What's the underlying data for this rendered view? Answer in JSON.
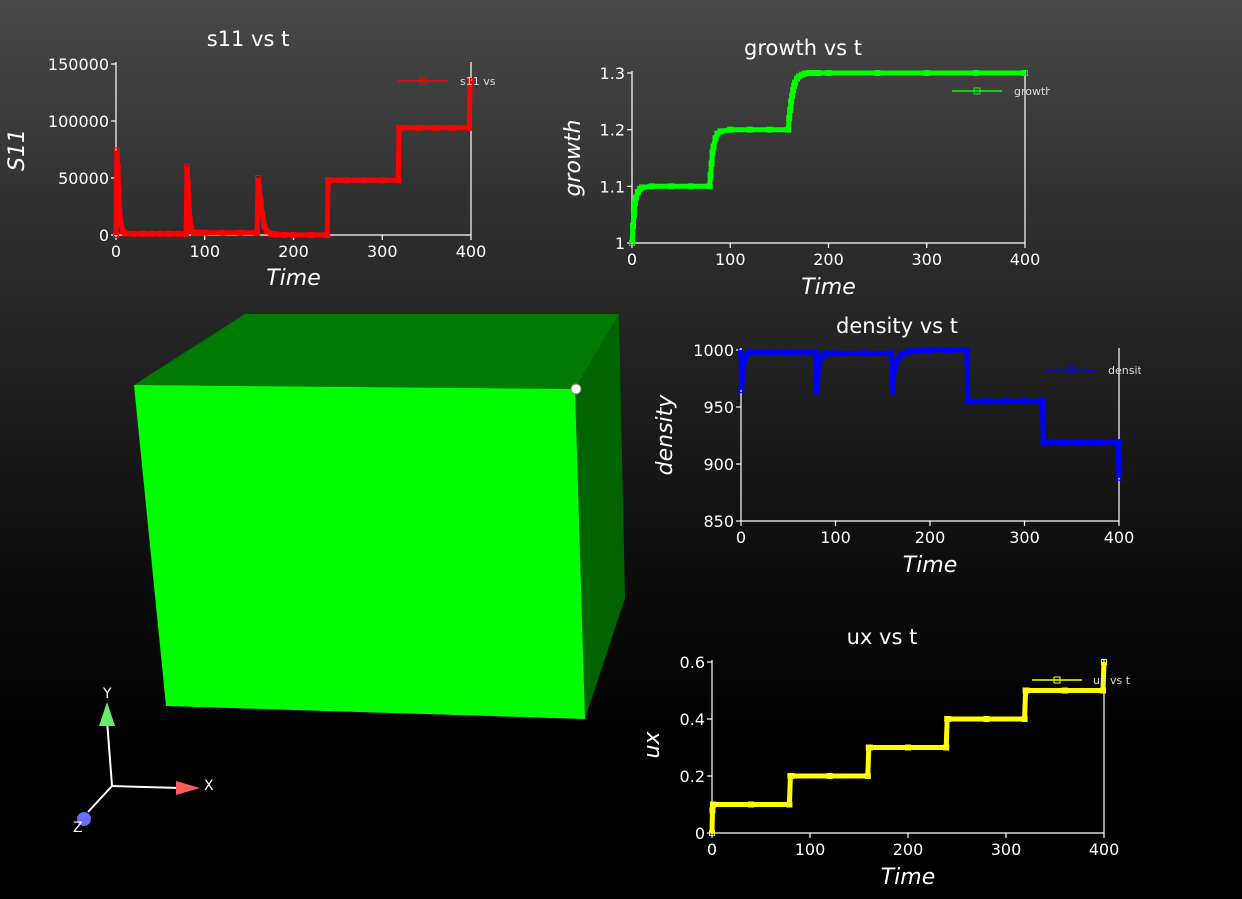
{
  "scene": {
    "box_colors": {
      "front": "#00ff00",
      "top": "#007a00",
      "side": "#006400",
      "marker": "#ffffff"
    },
    "triad": {
      "x_label": "X",
      "y_label": "Y",
      "z_label": "Z",
      "x_color": "#ff5a5a",
      "y_color": "#66ee66",
      "z_color": "#6a6aff"
    }
  },
  "chart_data": [
    {
      "id": "s11",
      "type": "line",
      "title": "s11 vs t",
      "xlabel": "Time",
      "ylabel": "S11",
      "color": "#ff0000",
      "legend": "s11 vs",
      "xlim": [
        0,
        400
      ],
      "ylim": [
        0,
        150000
      ],
      "xticks": [
        0,
        100,
        200,
        300,
        400
      ],
      "yticks": [
        0,
        50000,
        100000,
        150000
      ],
      "series": [
        {
          "name": "s11 vs",
          "x": [
            0,
            1,
            2,
            3,
            5,
            8,
            10,
            20,
            30,
            40,
            50,
            60,
            70,
            79,
            80,
            81,
            83,
            85,
            88,
            90,
            95,
            100,
            120,
            140,
            158,
            159,
            160,
            161,
            163,
            165,
            167,
            170,
            175,
            180,
            190,
            200,
            220,
            238,
            239,
            240,
            260,
            280,
            300,
            318,
            319,
            320,
            340,
            360,
            380,
            398,
            399,
            400
          ],
          "y": [
            0,
            74000,
            60000,
            40000,
            12000,
            3000,
            1500,
            1000,
            1000,
            1000,
            1000,
            1000,
            1000,
            1000,
            60000,
            45000,
            15000,
            5000,
            2000,
            2000,
            2000,
            2000,
            2000,
            2000,
            2000,
            2000,
            50000,
            42000,
            30000,
            18000,
            8000,
            3000,
            1000,
            500,
            100,
            0,
            0,
            0,
            48000,
            48000,
            48000,
            48000,
            48000,
            48000,
            94000,
            94000,
            94000,
            94000,
            94000,
            94000,
            135000,
            135000
          ]
        }
      ]
    },
    {
      "id": "growth",
      "type": "line",
      "title": "growth vs t",
      "xlabel": "Time",
      "ylabel": "growth",
      "color": "#00ff00",
      "legend": "growth",
      "xlim": [
        0,
        400
      ],
      "ylim": [
        1,
        1.3
      ],
      "xticks": [
        0,
        100,
        200,
        300,
        400
      ],
      "yticks": [
        1,
        1.1,
        1.2,
        1.3
      ],
      "series": [
        {
          "name": "growth",
          "x": [
            0,
            1,
            2,
            3,
            4,
            6,
            8,
            10,
            20,
            40,
            60,
            79,
            80,
            81,
            82,
            83,
            85,
            87,
            90,
            100,
            120,
            140,
            159,
            160,
            161,
            162,
            163,
            164,
            165,
            166,
            168,
            170,
            173,
            176,
            180,
            185,
            190,
            200,
            250,
            300,
            350,
            400
          ],
          "y": [
            1,
            1.03,
            1.05,
            1.07,
            1.08,
            1.09,
            1.095,
            1.098,
            1.1,
            1.1,
            1.1,
            1.1,
            1.12,
            1.14,
            1.16,
            1.17,
            1.185,
            1.193,
            1.197,
            1.2,
            1.2,
            1.2,
            1.2,
            1.22,
            1.235,
            1.25,
            1.26,
            1.27,
            1.277,
            1.283,
            1.29,
            1.294,
            1.297,
            1.299,
            1.3,
            1.3,
            1.3,
            1.3,
            1.3,
            1.3,
            1.3,
            1.3
          ]
        }
      ]
    },
    {
      "id": "density",
      "type": "line",
      "title": "density vs t",
      "xlabel": "Time",
      "ylabel": "density",
      "color": "#0000ff",
      "legend": "density",
      "xlim": [
        0,
        400
      ],
      "ylim": [
        850,
        1000
      ],
      "xticks": [
        0,
        100,
        200,
        300,
        400
      ],
      "yticks": [
        850,
        900,
        950,
        1000
      ],
      "series": [
        {
          "name": "density",
          "x": [
            0,
            0.5,
            1,
            2,
            3,
            5,
            8,
            10,
            30,
            50,
            79,
            80,
            81,
            82,
            84,
            86,
            90,
            100,
            130,
            158,
            159,
            160,
            161,
            163,
            166,
            170,
            175,
            180,
            200,
            220,
            238,
            239,
            240,
            260,
            280,
            300,
            318,
            319,
            320,
            340,
            360,
            380,
            398,
            399,
            400
          ],
          "y": [
            1000,
            965,
            975,
            985,
            990,
            995,
            998,
            998,
            998,
            998,
            998,
            963,
            975,
            985,
            992,
            995,
            997,
            997,
            997,
            997,
            997,
            963,
            975,
            985,
            992,
            996,
            998,
            999,
            1000,
            1000,
            1000,
            1000,
            955,
            955,
            955,
            955,
            955,
            955,
            919,
            919,
            919,
            919,
            919,
            919,
            888
          ]
        }
      ]
    },
    {
      "id": "ux",
      "type": "line",
      "title": "ux vs t",
      "xlabel": "Time",
      "ylabel": "ux",
      "color": "#ffff00",
      "legend": "ux vs t",
      "xlim": [
        0,
        400
      ],
      "ylim": [
        0,
        0.6
      ],
      "xticks": [
        0,
        100,
        200,
        300,
        400
      ],
      "yticks": [
        0,
        0.2,
        0.4,
        0.6
      ],
      "series": [
        {
          "name": "ux vs t",
          "x": [
            0,
            0.5,
            1,
            40,
            79,
            80,
            81,
            120,
            159,
            160,
            161,
            200,
            239,
            240,
            241,
            280,
            319,
            320,
            321,
            360,
            399,
            400
          ],
          "y": [
            0,
            0.08,
            0.1,
            0.1,
            0.1,
            0.2,
            0.2,
            0.2,
            0.2,
            0.3,
            0.3,
            0.3,
            0.3,
            0.4,
            0.4,
            0.4,
            0.4,
            0.5,
            0.5,
            0.5,
            0.5,
            0.6
          ]
        }
      ]
    }
  ]
}
